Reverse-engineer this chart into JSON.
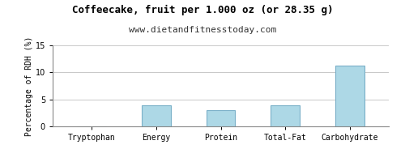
{
  "title": "Coffeecake, fruit per 1.000 oz (or 28.35 g)",
  "subtitle": "www.dietandfitnesstoday.com",
  "categories": [
    "Tryptophan",
    "Energy",
    "Protein",
    "Total-Fat",
    "Carbohydrate"
  ],
  "values": [
    0.0,
    3.9,
    3.0,
    3.9,
    11.2
  ],
  "bar_color": "#add8e6",
  "bar_edge_color": "#7ab0c8",
  "ylabel": "Percentage of RDH (%)",
  "ylim": [
    0,
    15
  ],
  "yticks": [
    0,
    5,
    10,
    15
  ],
  "background_color": "#ffffff",
  "grid_color": "#c8c8c8",
  "title_fontsize": 9,
  "subtitle_fontsize": 8,
  "tick_fontsize": 7,
  "ylabel_fontsize": 7,
  "bar_width": 0.45
}
